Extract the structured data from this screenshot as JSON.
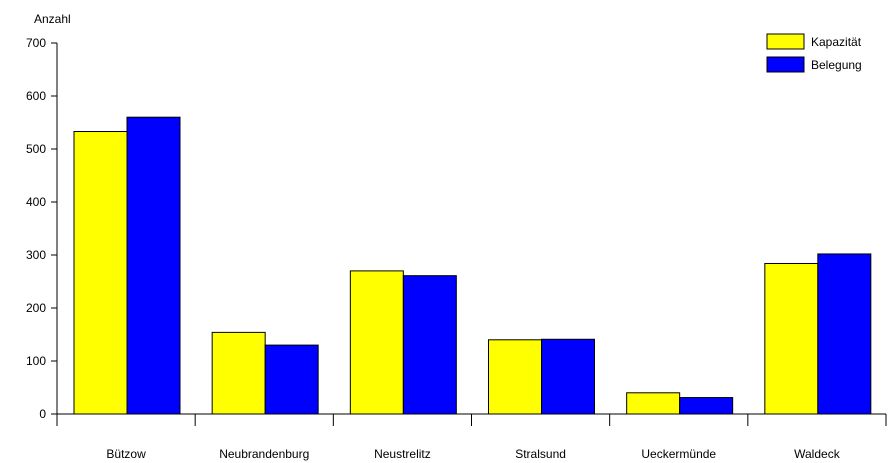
{
  "chart_data": {
    "type": "bar",
    "ylabel": "Anzahl",
    "xlabel": "",
    "title": "",
    "ylim": [
      0,
      700
    ],
    "yticks": [
      0,
      100,
      200,
      300,
      400,
      500,
      600,
      700
    ],
    "categories": [
      "Bützow",
      "Neubrandenburg",
      "Neustrelitz",
      "Stralsund",
      "Ueckermünde",
      "Waldeck"
    ],
    "series": [
      {
        "name": "Kapazität",
        "color": "#ffff00",
        "values": [
          533,
          154,
          270,
          140,
          40,
          284
        ]
      },
      {
        "name": "Belegung",
        "color": "#0000ff",
        "values": [
          560,
          130,
          261,
          141,
          31,
          302
        ]
      }
    ],
    "legend_position": "top-right",
    "grid": false
  }
}
